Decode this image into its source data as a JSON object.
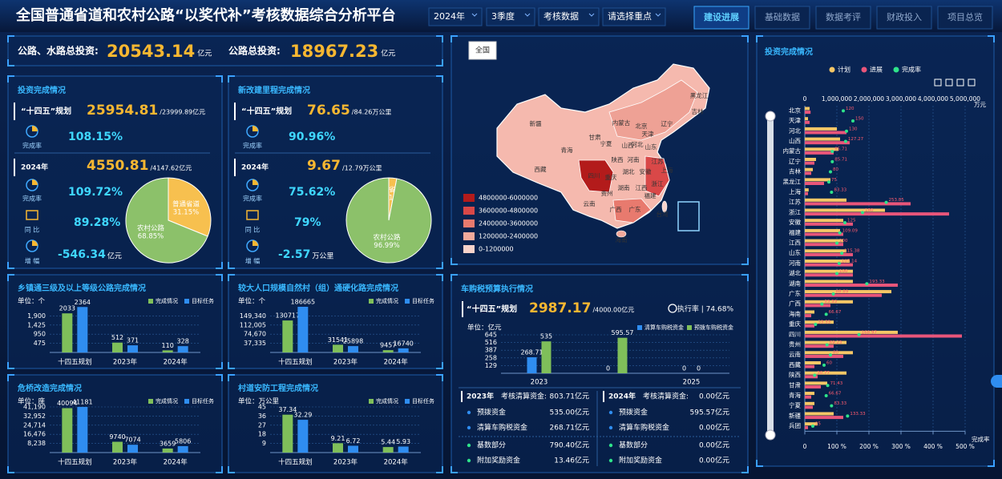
{
  "header": {
    "title": "全国普通省道和农村公路“以奖代补”考核数据综合分析平台",
    "filters": [
      "2024年",
      "3季度",
      "考核数据",
      "请选择重点"
    ],
    "tabs": [
      "建设进展",
      "基础数据",
      "数据考评",
      "财政投入",
      "项目总览"
    ]
  },
  "summary": {
    "label1": "公路、水路总投资:",
    "value1": "20543.14",
    "unit1": "亿元",
    "label2": "公路总投资:",
    "value2": "18967.23",
    "unit2": "亿元"
  },
  "investment": {
    "title": "投资完成情况",
    "plan_label": "“十四五”规划",
    "plan_value": "25954.81",
    "plan_total": "/23999.89亿元",
    "rate_label": "完成率",
    "plan_rate": "108.15%",
    "year_label": "2024年",
    "year_value": "4550.81",
    "year_total": "/4147.62亿元",
    "year_rate_label": "完成率",
    "year_rate": "109.72%",
    "yoy_label": "同 比",
    "yoy": "89.28%",
    "growth_label": "增 幅",
    "growth": "-546.34",
    "growth_unit": "亿元"
  },
  "mileage": {
    "title": "新改建里程完成情况",
    "plan_label": "“十四五”规划",
    "plan_value": "76.65",
    "plan_total": "/84.26万公里",
    "rate_label": "完成率",
    "plan_rate": "90.96%",
    "year_label": "2024年",
    "year_value": "9.67",
    "year_total": "/12.79万公里",
    "year_rate_label": "完成率",
    "year_rate": "75.62%",
    "yoy_label": "同 比",
    "yoy": "79%",
    "growth_label": "增 幅",
    "growth": "-2.57",
    "growth_unit": "万公里"
  },
  "tax": {
    "title": "车购税预算执行情况",
    "plan_label": "“十四五”规划",
    "plan_value": "2987.17",
    "plan_total": "/4000.00亿元",
    "exec": "执行率 | 74.68%"
  },
  "funds": [
    {
      "year": "2023年",
      "total_label": "考核清算资金:",
      "total": "803.71亿元",
      "rows": [
        {
          "label": "预拨资金",
          "value": "535.00亿元"
        },
        {
          "label": "清算车购税资金",
          "value": "268.71亿元"
        },
        {
          "label": "基数部分",
          "value": "790.40亿元"
        },
        {
          "label": "附加奖励资金",
          "value": "13.46亿元"
        }
      ]
    },
    {
      "year": "2024年",
      "total_label": "考核清算资金:",
      "total": "0.00亿元",
      "rows": [
        {
          "label": "预拨资金",
          "value": "595.57亿元"
        },
        {
          "label": "清算车购税资金",
          "value": "0.00亿元"
        },
        {
          "label": "基数部分",
          "value": "0.00亿元"
        },
        {
          "label": "附加奖励资金",
          "value": "0.00亿元"
        }
      ]
    }
  ],
  "map": {
    "button": "全国",
    "legend": [
      {
        "label": "4800000-6000000",
        "color": "#b31b1b"
      },
      {
        "label": "3600000-4800000",
        "color": "#d94848"
      },
      {
        "label": "2400000-3600000",
        "color": "#e87a6e"
      },
      {
        "label": "1200000-2400000",
        "color": "#f2a99b"
      },
      {
        "label": "0-1200000",
        "color": "#f8d3cb"
      }
    ],
    "provinces": [
      "黑龙江",
      "吉林",
      "辽宁",
      "内蒙古",
      "北京",
      "天津",
      "河北",
      "山西",
      "山东",
      "新疆",
      "甘肃",
      "宁夏",
      "青海",
      "西藏",
      "陕西",
      "河南",
      "江苏",
      "安徽",
      "湖北",
      "四川",
      "重庆",
      "上海",
      "浙江",
      "湖南",
      "江西",
      "贵州",
      "福建",
      "云南",
      "广西",
      "广东",
      "台湾",
      "海南"
    ]
  },
  "chart_data": [
    {
      "type": "pie",
      "categories": [
        "普通省道",
        "农村公路"
      ],
      "values": [
        31.15,
        68.85
      ],
      "value_labels": [
        "31.15%",
        "68.85%"
      ],
      "colors": [
        "#f7c04f",
        "#8cc16a"
      ]
    },
    {
      "type": "pie",
      "categories": [
        "普通省道",
        "农村公路"
      ],
      "values": [
        3.01,
        96.99
      ],
      "value_labels": [
        "3.01%",
        "96.99%"
      ],
      "colors": [
        "#f7c04f",
        "#8cc16a"
      ]
    },
    {
      "type": "bar",
      "title": "乡镇通三级及以上等级公路完成情况",
      "unit": "单位：个",
      "categories": [
        "十四五规划",
        "2023年",
        "2024年"
      ],
      "series": [
        {
          "name": "完成情况",
          "color": "#7fbf5a",
          "values": [
            2033,
            512,
            110
          ]
        },
        {
          "name": "目标任务",
          "color": "#2f8df0",
          "values": [
            2364,
            371,
            328
          ]
        }
      ],
      "ylim": [
        0,
        2375
      ],
      "yticks": [
        475,
        950,
        {
          "value": 1425,
          "label": "1,425"
        },
        {
          "value": 1900,
          "label": "1,900"
        }
      ]
    },
    {
      "type": "bar",
      "title": "较大人口规模自然村（组）通硬化路完成情况",
      "unit": "单位：个",
      "categories": [
        "十四五规划",
        "2023年",
        "2024年"
      ],
      "series": [
        {
          "name": "完成情况",
          "color": "#7fbf5a",
          "values": [
            130717,
            31541,
            9457
          ]
        },
        {
          "name": "目标任务",
          "color": "#2f8df0",
          "values": [
            186665,
            25898,
            16740
          ]
        }
      ],
      "ylim": [
        0,
        186675
      ],
      "yticks": [
        {
          "value": 37335,
          "label": "37,335"
        },
        {
          "value": 74670,
          "label": "74,670"
        },
        {
          "value": 112005,
          "label": "112,005"
        },
        {
          "value": 149340,
          "label": "149,340"
        }
      ]
    },
    {
      "type": "bar",
      "title": "危桥改造完成情况",
      "unit": "单位：座",
      "categories": [
        "十四五规划",
        "2023年",
        "2024年"
      ],
      "series": [
        {
          "name": "完成情况",
          "color": "#7fbf5a",
          "values": [
            40094,
            9740,
            3659
          ]
        },
        {
          "name": "目标任务",
          "color": "#2f8df0",
          "values": [
            41181,
            7074,
            5806
          ]
        }
      ],
      "ylim": [
        0,
        41190
      ],
      "yticks": [
        {
          "value": 8238,
          "label": "8,238"
        },
        {
          "value": 16476,
          "label": "16,476"
        },
        {
          "value": 24714,
          "label": "24,714"
        },
        {
          "value": 32952,
          "label": "32,952"
        },
        {
          "value": 41190,
          "label": "41,190"
        }
      ]
    },
    {
      "type": "bar",
      "title": "村道安防工程完成情况",
      "unit": "单位：万公里",
      "categories": [
        "十四五规划",
        "2023年",
        "2024年"
      ],
      "series": [
        {
          "name": "完成情况",
          "color": "#7fbf5a",
          "values": [
            37.34,
            9.21,
            5.44
          ]
        },
        {
          "name": "目标任务",
          "color": "#2f8df0",
          "values": [
            32.29,
            6.72,
            5.93
          ]
        }
      ],
      "ylim": [
        0,
        45
      ],
      "yticks": [
        9,
        18,
        27,
        36,
        45
      ]
    },
    {
      "type": "bar",
      "unit": "单位：亿元",
      "categories": [
        "2023",
        null,
        "2025"
      ],
      "series": [
        {
          "name": "清算车购税资金",
          "color": "#2f8df0",
          "values": [
            268.71,
            0,
            0
          ]
        },
        {
          "name": "预拨车购税资金",
          "color": "#7fbf5a",
          "values": [
            535,
            595.57,
            0
          ]
        }
      ],
      "ylim": [
        0,
        645
      ],
      "yticks": [
        129,
        258,
        387,
        516,
        645
      ]
    },
    {
      "type": "hbar",
      "title": "投资完成情况",
      "categories": [
        "北京",
        "天津",
        "河北",
        "山西",
        "内蒙古",
        "辽宁",
        "吉林",
        "黑龙江",
        "上海",
        "江苏",
        "浙江",
        "安徽",
        "福建",
        "江西",
        "山东",
        "河南",
        "湖北",
        "湖南",
        "广东",
        "广西",
        "海南",
        "重庆",
        "四川",
        "贵州",
        "云南",
        "西藏",
        "陕西",
        "甘肃",
        "青海",
        "宁夏",
        "新疆",
        "兵团"
      ],
      "series": [
        {
          "name": "计划",
          "color": "#f7c766",
          "values": [
            150000,
            100000,
            1000000,
            1100000,
            1050000,
            350000,
            250000,
            800000,
            120000,
            1300000,
            2500000,
            1200000,
            1100000,
            1200000,
            1300000,
            1400000,
            1500000,
            1500000,
            2700000,
            1500000,
            300000,
            900000,
            2900000,
            1300000,
            1500000,
            500000,
            1300000,
            700000,
            300000,
            300000,
            900000,
            400000
          ]
        },
        {
          "name": "进展",
          "color": "#e8557a",
          "values": [
            180000,
            150000,
            1300000,
            1400000,
            900000,
            300000,
            200000,
            600000,
            100000,
            3300000,
            4500000,
            1500000,
            1200000,
            1200000,
            1500000,
            1500000,
            1500000,
            2900000,
            2400000,
            800000,
            200000,
            300000,
            4900000,
            900000,
            1200000,
            300000,
            400000,
            500000,
            200000,
            250000,
            1200000,
            100000
          ]
        },
        {
          "name": "完成率",
          "color": "#2ee38a",
          "axis": "x2",
          "values": [
            120.0,
            150.0,
            130.0,
            127.27,
            85.71,
            85.71,
            80.0,
            75.0,
            83.33,
            253.85,
            180.0,
            125.0,
            109.09,
            100.0,
            115.38,
            107.14,
            100.0,
            193.33,
            88.89,
            53.33,
            66.67,
            33.33,
            168.97,
            69.23,
            80.0,
            60.0,
            30.77,
            71.43,
            66.67,
            83.33,
            133.33,
            25.0
          ]
        }
      ],
      "xlim": [
        0,
        5000000
      ],
      "xticks": [
        0,
        {
          "value": 1000000,
          "label": "1,000,000"
        },
        {
          "value": 2000000,
          "label": "2,000,000"
        },
        {
          "value": 3000000,
          "label": "3,000,000"
        },
        {
          "value": 4000000,
          "label": "4,000,000"
        },
        {
          "value": 5000000,
          "label": "5,000,000"
        }
      ],
      "x_unit": "万元",
      "x2lim": [
        0,
        500
      ],
      "x2ticks": [
        0,
        {
          "value": 100,
          "label": "100 %"
        },
        {
          "value": 200,
          "label": "200 %"
        },
        {
          "value": 300,
          "label": "300 %"
        },
        {
          "value": 400,
          "label": "400 %"
        },
        {
          "value": 500,
          "label": "500 %"
        }
      ],
      "x2label": "完成率"
    }
  ]
}
